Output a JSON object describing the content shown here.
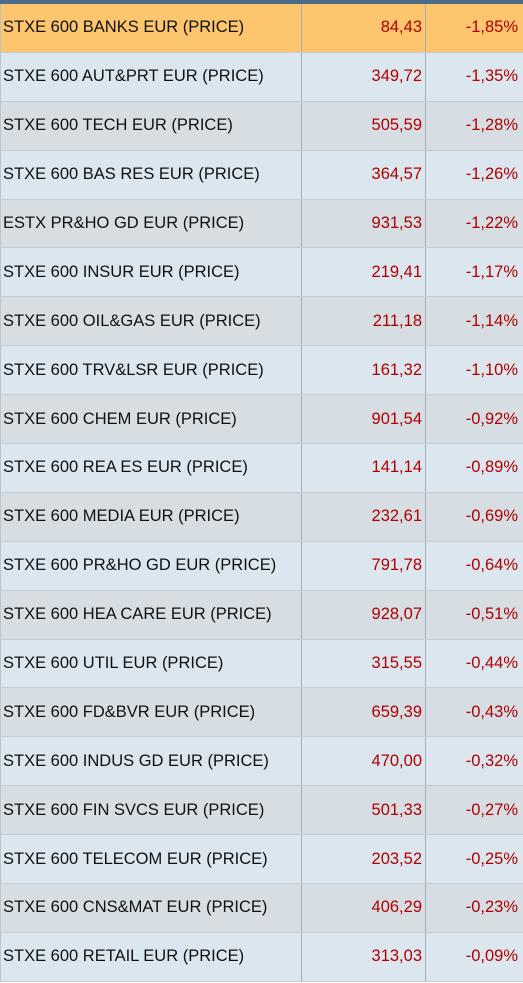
{
  "colors": {
    "selected_row": "#fdc66e",
    "row_odd": "#d6dde3",
    "row_even": "#dbe6ee",
    "negative": "#b00000"
  },
  "rows": [
    {
      "name": "STXE 600 BANKS EUR (PRICE)",
      "price": "84,43",
      "change": "-1,85%",
      "selected": true
    },
    {
      "name": "STXE 600 AUT&PRT EUR (PRICE)",
      "price": "349,72",
      "change": "-1,35%"
    },
    {
      "name": "STXE 600 TECH EUR (PRICE)",
      "price": "505,59",
      "change": "-1,28%"
    },
    {
      "name": "STXE 600 BAS RES EUR (PRICE)",
      "price": "364,57",
      "change": "-1,26%"
    },
    {
      "name": "ESTX PR&HO GD EUR (PRICE)",
      "price": "931,53",
      "change": "-1,22%"
    },
    {
      "name": "STXE 600 INSUR EUR (PRICE)",
      "price": "219,41",
      "change": "-1,17%"
    },
    {
      "name": "STXE 600 OIL&GAS EUR (PRICE)",
      "price": "211,18",
      "change": "-1,14%"
    },
    {
      "name": "STXE 600 TRV&LSR EUR (PRICE)",
      "price": "161,32",
      "change": "-1,10%"
    },
    {
      "name": "STXE 600 CHEM EUR (PRICE)",
      "price": "901,54",
      "change": "-0,92%"
    },
    {
      "name": "STXE 600 REA ES EUR (PRICE)",
      "price": "141,14",
      "change": "-0,89%"
    },
    {
      "name": "STXE 600 MEDIA EUR (PRICE)",
      "price": "232,61",
      "change": "-0,69%"
    },
    {
      "name": "STXE 600 PR&HO GD EUR (PRICE)",
      "price": "791,78",
      "change": "-0,64%"
    },
    {
      "name": "STXE 600 HEA CARE EUR (PRICE)",
      "price": "928,07",
      "change": "-0,51%"
    },
    {
      "name": "STXE 600 UTIL EUR (PRICE)",
      "price": "315,55",
      "change": "-0,44%"
    },
    {
      "name": "STXE 600 FD&BVR EUR (PRICE)",
      "price": "659,39",
      "change": "-0,43%"
    },
    {
      "name": "STXE 600 INDUS GD EUR (PRICE)",
      "price": "470,00",
      "change": "-0,32%"
    },
    {
      "name": "STXE 600 FIN SVCS EUR (PRICE)",
      "price": "501,33",
      "change": "-0,27%"
    },
    {
      "name": "STXE 600 TELECOM EUR (PRICE)",
      "price": "203,52",
      "change": "-0,25%"
    },
    {
      "name": "STXE 600 CNS&MAT EUR (PRICE)",
      "price": "406,29",
      "change": "-0,23%"
    },
    {
      "name": "STXE 600 RETAIL EUR (PRICE)",
      "price": "313,03",
      "change": "-0,09%"
    }
  ]
}
